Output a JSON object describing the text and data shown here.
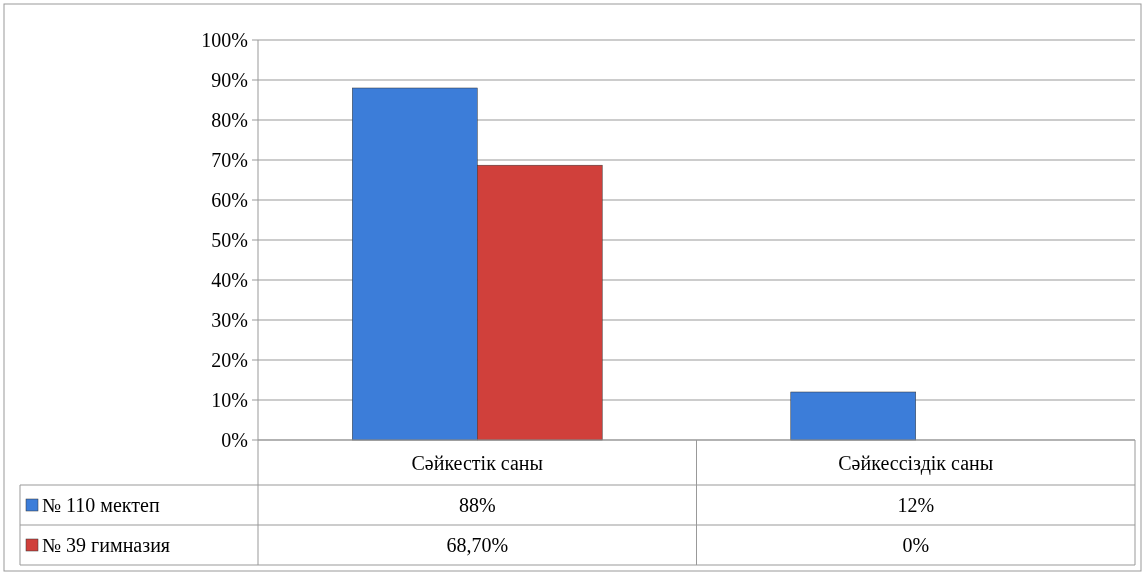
{
  "chart_data": {
    "type": "bar",
    "categories": [
      "Сәйкестік саны",
      "Сәйкессіздік саны"
    ],
    "series": [
      {
        "name": "№ 110 мектеп",
        "color": "#3c7dd9",
        "values": [
          88,
          12
        ],
        "value_labels": [
          "88%",
          "12%"
        ]
      },
      {
        "name": "№ 39 гимназия",
        "color": "#d0403b",
        "values": [
          68.7,
          0
        ],
        "value_labels": [
          "68,70%",
          "0%"
        ]
      }
    ],
    "ylim": [
      0,
      100
    ],
    "yticks": [
      {
        "value": 0,
        "label": "0%"
      },
      {
        "value": 10,
        "label": "10%"
      },
      {
        "value": 20,
        "label": "20%"
      },
      {
        "value": 30,
        "label": "30%"
      },
      {
        "value": 40,
        "label": "40%"
      },
      {
        "value": 50,
        "label": "50%"
      },
      {
        "value": 60,
        "label": "60%"
      },
      {
        "value": 70,
        "label": "70%"
      },
      {
        "value": 80,
        "label": "80%"
      },
      {
        "value": 90,
        "label": "90%"
      },
      {
        "value": 100,
        "label": "100%"
      }
    ],
    "grid": "y",
    "legend": "bottom"
  }
}
